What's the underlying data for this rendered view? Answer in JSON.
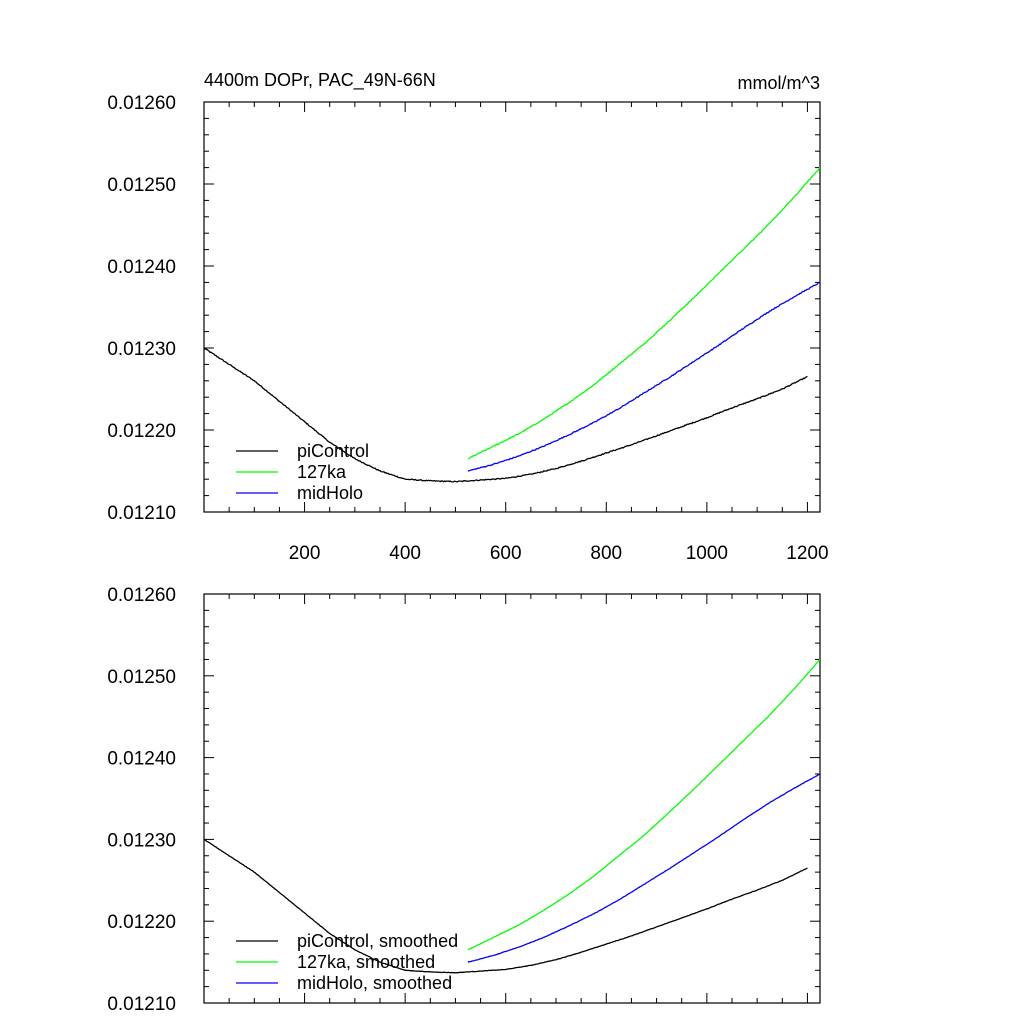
{
  "chart_data": [
    {
      "type": "line",
      "title": "4400m DOPr, PAC_49N-66N",
      "units": "mmol/m^3",
      "xlabel": "",
      "ylabel": "",
      "xlim": [
        0,
        1225
      ],
      "ylim": [
        0.0121,
        0.0126
      ],
      "x_ticks": [
        200,
        400,
        600,
        800,
        1000,
        1200
      ],
      "x_tick_labels": [
        "200",
        "400",
        "600",
        "800",
        "1000",
        "1200"
      ],
      "y_ticks": [
        0.0121,
        0.0122,
        0.0123,
        0.0124,
        0.0125,
        0.0126
      ],
      "y_tick_labels": [
        "0.01210",
        "0.01220",
        "0.01230",
        "0.01240",
        "0.01250",
        "0.01260"
      ],
      "legend_position": "bottom-left",
      "noisy": true,
      "series": [
        {
          "name": "piControl",
          "color": "#000000",
          "x": [
            0,
            50,
            100,
            150,
            200,
            250,
            300,
            350,
            400,
            450,
            500,
            550,
            600,
            650,
            700,
            750,
            800,
            850,
            900,
            950,
            1000,
            1050,
            1100,
            1150,
            1200
          ],
          "values": [
            0.0123,
            0.01228,
            0.01226,
            0.012235,
            0.01221,
            0.012185,
            0.012165,
            0.01215,
            0.01214,
            0.012138,
            0.012137,
            0.012139,
            0.012141,
            0.012146,
            0.012153,
            0.012162,
            0.012172,
            0.012182,
            0.012193,
            0.012204,
            0.012215,
            0.012227,
            0.012238,
            0.01225,
            0.012265
          ]
        },
        {
          "name": "127ka",
          "color": "#00ff00",
          "x": [
            525,
            575,
            625,
            675,
            725,
            775,
            825,
            875,
            925,
            975,
            1025,
            1075,
            1125,
            1175,
            1225
          ],
          "values": [
            0.012165,
            0.01218,
            0.012195,
            0.012213,
            0.012233,
            0.012255,
            0.01228,
            0.012305,
            0.012333,
            0.012362,
            0.012392,
            0.012422,
            0.012452,
            0.012485,
            0.01252
          ]
        },
        {
          "name": "midHolo",
          "color": "#0000ff",
          "x": [
            525,
            575,
            625,
            675,
            725,
            775,
            825,
            875,
            925,
            975,
            1025,
            1075,
            1125,
            1175,
            1225
          ],
          "values": [
            0.01215,
            0.012158,
            0.012168,
            0.01218,
            0.012194,
            0.012209,
            0.012226,
            0.012245,
            0.012264,
            0.012284,
            0.012304,
            0.012325,
            0.012345,
            0.012363,
            0.01238
          ]
        }
      ]
    },
    {
      "type": "line",
      "title": "",
      "xlabel": "",
      "ylabel": "",
      "xlim": [
        0,
        1225
      ],
      "ylim": [
        0.0121,
        0.0126
      ],
      "x_ticks": [
        200,
        400,
        600,
        800,
        1000,
        1200
      ],
      "x_tick_labels": [],
      "y_ticks": [
        0.0121,
        0.0122,
        0.0123,
        0.0124,
        0.0125,
        0.0126
      ],
      "y_tick_labels": [
        "0.01210",
        "0.01220",
        "0.01230",
        "0.01240",
        "0.01250",
        "0.01260"
      ],
      "legend_position": "bottom-left",
      "noisy": false,
      "series": [
        {
          "name": "piControl, smoothed",
          "color": "#000000",
          "x": [
            0,
            50,
            100,
            150,
            200,
            250,
            300,
            350,
            400,
            450,
            500,
            550,
            600,
            650,
            700,
            750,
            800,
            850,
            900,
            950,
            1000,
            1050,
            1100,
            1150,
            1200
          ],
          "values": [
            0.0123,
            0.01228,
            0.01226,
            0.012235,
            0.01221,
            0.012185,
            0.012165,
            0.01215,
            0.01214,
            0.012138,
            0.012137,
            0.012139,
            0.012141,
            0.012146,
            0.012153,
            0.012162,
            0.012172,
            0.012182,
            0.012193,
            0.012204,
            0.012215,
            0.012227,
            0.012238,
            0.01225,
            0.012265
          ]
        },
        {
          "name": "127ka, smoothed",
          "color": "#00ff00",
          "x": [
            525,
            575,
            625,
            675,
            725,
            775,
            825,
            875,
            925,
            975,
            1025,
            1075,
            1125,
            1175,
            1225
          ],
          "values": [
            0.012165,
            0.01218,
            0.012195,
            0.012213,
            0.012233,
            0.012255,
            0.01228,
            0.012305,
            0.012333,
            0.012362,
            0.012392,
            0.012422,
            0.012452,
            0.012485,
            0.01252
          ]
        },
        {
          "name": "midHolo, smoothed",
          "color": "#0000ff",
          "x": [
            525,
            575,
            625,
            675,
            725,
            775,
            825,
            875,
            925,
            975,
            1025,
            1075,
            1125,
            1175,
            1225
          ],
          "values": [
            0.01215,
            0.012158,
            0.012168,
            0.01218,
            0.012194,
            0.012209,
            0.012226,
            0.012245,
            0.012264,
            0.012284,
            0.012304,
            0.012325,
            0.012345,
            0.012363,
            0.01238
          ]
        }
      ]
    }
  ]
}
